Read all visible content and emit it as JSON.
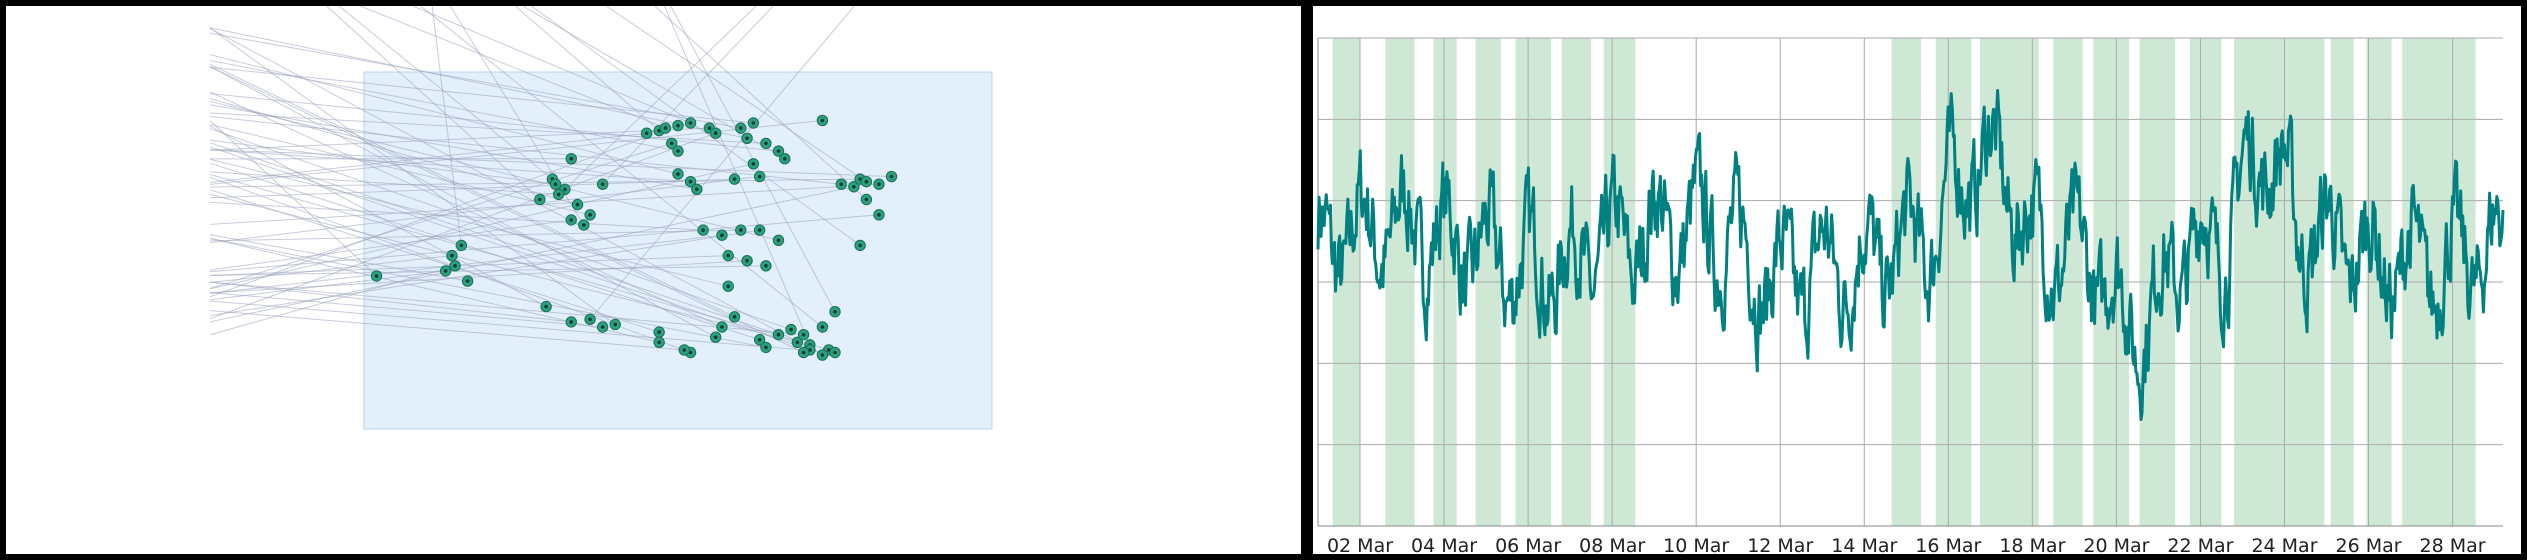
{
  "colors": {
    "background": "#ffffff",
    "separator": "#000000",
    "line": "#008080",
    "band": "#cfe8d5",
    "plot_region": "#e3f0fb",
    "plot_region_border": "#b9d3ee",
    "point_fill": "#2aa17f",
    "point_core": "#0e3b2e",
    "ray": "#9aa3bd",
    "grid": "#aaaaaa"
  },
  "chart_data": [
    {
      "type": "scatter",
      "title": "",
      "xlabel": "",
      "ylabel": "",
      "grid": false,
      "ray_origin": "left edge",
      "points": [
        [
          2,
          3
        ],
        [
          14.5,
          3.2
        ],
        [
          16.5,
          2.9
        ],
        [
          13,
          3.1
        ],
        [
          14,
          3.4
        ],
        [
          15.5,
          3.6
        ],
        [
          30,
          4.9
        ],
        [
          34,
          4.4
        ],
        [
          33,
          4.1
        ],
        [
          32,
          4.7
        ],
        [
          31,
          4.6
        ],
        [
          35,
          4.0
        ],
        [
          30.5,
          4.8
        ],
        [
          38,
          4.8
        ],
        [
          33,
          5.3
        ],
        [
          28,
          4.5
        ],
        [
          36,
          4.2
        ],
        [
          45,
          5.8
        ],
        [
          47,
          5.85
        ],
        [
          48,
          5.9
        ],
        [
          50,
          5.95
        ],
        [
          52,
          6.0
        ],
        [
          49,
          5.6
        ],
        [
          50,
          5.45
        ],
        [
          50,
          5.0
        ],
        [
          52,
          4.85
        ],
        [
          53,
          4.7
        ],
        [
          55,
          5.9
        ],
        [
          56,
          5.8
        ],
        [
          60,
          5.9
        ],
        [
          62,
          6.0
        ],
        [
          61,
          5.7
        ],
        [
          64,
          5.6
        ],
        [
          66,
          5.45
        ],
        [
          67,
          5.3
        ],
        [
          62,
          5.2
        ],
        [
          63,
          4.95
        ],
        [
          59,
          4.9
        ],
        [
          73,
          6.05
        ],
        [
          76,
          4.8
        ],
        [
          78,
          4.75
        ],
        [
          79,
          4.9
        ],
        [
          80,
          4.85
        ],
        [
          82,
          4.8
        ],
        [
          84,
          4.95
        ],
        [
          80,
          4.5
        ],
        [
          82,
          4.2
        ],
        [
          79,
          3.6
        ],
        [
          54,
          3.9
        ],
        [
          57,
          3.8
        ],
        [
          60,
          3.9
        ],
        [
          63,
          3.9
        ],
        [
          66,
          3.7
        ],
        [
          58,
          3.4
        ],
        [
          61,
          3.3
        ],
        [
          64,
          3.2
        ],
        [
          58,
          2.8
        ],
        [
          29,
          2.4
        ],
        [
          33,
          2.1
        ],
        [
          36,
          2.15
        ],
        [
          38,
          2.0
        ],
        [
          40,
          2.05
        ],
        [
          47,
          1.9
        ],
        [
          47,
          1.7
        ],
        [
          52,
          1.5
        ],
        [
          51,
          1.55
        ],
        [
          56,
          1.8
        ],
        [
          57,
          2.0
        ],
        [
          63,
          1.75
        ],
        [
          64,
          1.6
        ],
        [
          66,
          1.85
        ],
        [
          68,
          1.95
        ],
        [
          69,
          1.7
        ],
        [
          71,
          1.65
        ],
        [
          70,
          1.85
        ],
        [
          73,
          2.0
        ],
        [
          74,
          1.55
        ],
        [
          75,
          1.5
        ],
        [
          73,
          1.45
        ],
        [
          71,
          1.55
        ],
        [
          70,
          1.5
        ],
        [
          59,
          2.2
        ],
        [
          75,
          2.3
        ]
      ]
    },
    {
      "type": "line",
      "title": "",
      "xlabel": "",
      "ylabel": "",
      "grid": true,
      "x_ticks": [
        "02 Mar",
        "04 Mar",
        "06 Mar",
        "08 Mar",
        "10 Mar",
        "12 Mar",
        "14 Mar",
        "16 Mar",
        "18 Mar",
        "20 Mar",
        "22 Mar",
        "24 Mar",
        "26 Mar",
        "28 Mar"
      ],
      "x_tick_days": [
        1,
        3,
        5,
        7,
        9,
        11,
        13,
        15,
        17,
        19,
        21,
        23,
        25,
        27
      ],
      "x_range_days": [
        0,
        28.2
      ],
      "y_gridlines": 6,
      "ylim": [
        0,
        1
      ],
      "shaded_day_ranges": [
        [
          0.35,
          1.0
        ],
        [
          1.6,
          2.3
        ],
        [
          2.75,
          3.3
        ],
        [
          3.75,
          4.35
        ],
        [
          4.7,
          5.55
        ],
        [
          5.8,
          6.5
        ],
        [
          6.8,
          7.55
        ],
        [
          13.65,
          14.35
        ],
        [
          14.7,
          15.55
        ],
        [
          15.75,
          17.15
        ],
        [
          17.5,
          18.2
        ],
        [
          18.45,
          19.3
        ],
        [
          19.55,
          20.4
        ],
        [
          20.75,
          21.5
        ],
        [
          21.8,
          23.95
        ],
        [
          24.1,
          24.65
        ],
        [
          24.95,
          25.55
        ],
        [
          25.8,
          27.55
        ]
      ],
      "series_seed": 7,
      "series_samples": 1150,
      "baseline_level": 0.57
    }
  ]
}
